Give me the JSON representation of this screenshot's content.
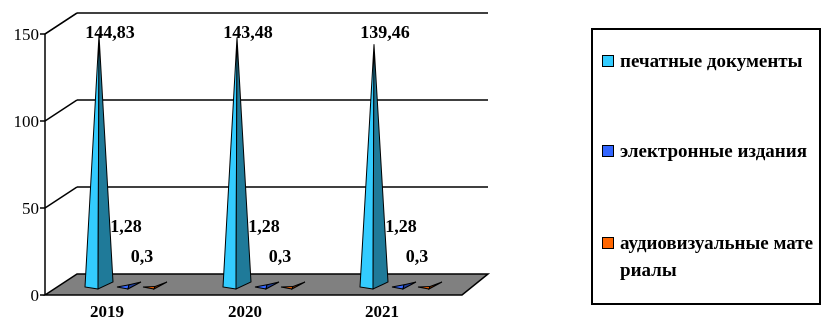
{
  "chart_data": {
    "type": "bar",
    "categories": [
      "2019",
      "2020",
      "2021"
    ],
    "series": [
      {
        "name": "печатные документы",
        "values": [
          144.83,
          143.48,
          139.46
        ],
        "labels": [
          "144,83",
          "143,48",
          "139,46"
        ],
        "color": "#33CCFF"
      },
      {
        "name": "электронные издания",
        "values": [
          1.28,
          1.28,
          1.28
        ],
        "labels": [
          "1,28",
          "1,28",
          "1,28"
        ],
        "color": "#3366FF"
      },
      {
        "name": "аудиовизуальные материалы",
        "values": [
          0.3,
          0.3,
          0.3
        ],
        "labels": [
          "0,3",
          "0,3",
          "0,3"
        ],
        "color": "#FF6600"
      }
    ],
    "yticks": [
      "0",
      "50",
      "100",
      "150"
    ],
    "ylim": [
      0,
      150
    ],
    "grid": true,
    "legend_position": "right",
    "floor_color": "#808080",
    "title": "",
    "xlabel": "",
    "ylabel": ""
  }
}
